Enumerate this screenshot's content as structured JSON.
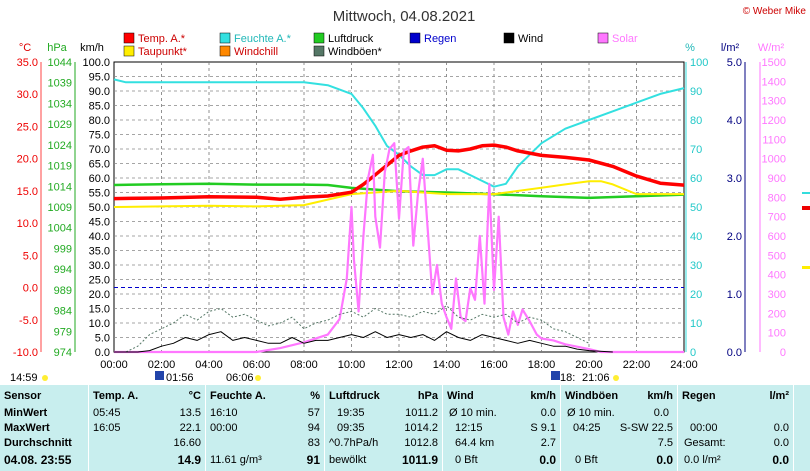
{
  "title": "Mittwoch, 04.08.2021",
  "copyright": "© Weber Mike",
  "legend": [
    {
      "label": "Temp. A.*",
      "color": "#ff0000",
      "col": 0,
      "row": 0
    },
    {
      "label": "Feuchte A.*",
      "color": "#33e0e0",
      "col": 1,
      "row": 0
    },
    {
      "label": "Luftdruck",
      "color": "#22cc22",
      "col": 2,
      "row": 0
    },
    {
      "label": "Regen",
      "color": "#0000cc",
      "col": 3,
      "row": 0
    },
    {
      "label": "Wind",
      "color": "#000000",
      "col": 4,
      "row": 0
    },
    {
      "label": "Solar",
      "color": "#ff77ff",
      "col": 5,
      "row": 0
    },
    {
      "label": "Taupunkt*",
      "color": "#ffee00",
      "col": 0,
      "row": 1
    },
    {
      "label": "Windchill",
      "color": "#ff8800",
      "col": 1,
      "row": 1
    },
    {
      "label": "Windböen*",
      "color": "#557766",
      "col": 2,
      "row": 1
    }
  ],
  "axis_units": {
    "temp": "°C",
    "pressure": "hPa",
    "wind": "km/h",
    "humidity": "%",
    "rain": "l/m²",
    "solar": "W/m²"
  },
  "colors": {
    "temp": "#ff0000",
    "humidity": "#33e0e0",
    "pressure": "#22cc22",
    "rain": "#0000cc",
    "wind": "#000000",
    "gust": "#557766",
    "solar": "#ff77ff",
    "dew": "#ffee00"
  },
  "annotations": {
    "time_now": "14:59",
    "sunrise": "06:06",
    "moonrise": "01:56",
    "sunset": "21:06",
    "moonset": "18:"
  },
  "chart_data": {
    "type": "line",
    "x_range_hours": [
      0,
      24
    ],
    "x_ticks": [
      "00:00",
      "02:00",
      "04:00",
      "06:00",
      "08:00",
      "10:00",
      "12:00",
      "14:00",
      "16:00",
      "18:00",
      "20:00",
      "22:00",
      "24:00"
    ],
    "axes": {
      "temp": {
        "min": -10,
        "max": 35,
        "ticks": [
          "35.0",
          "30.0",
          "25.0",
          "20.0",
          "15.0",
          "10.0",
          "5.0",
          "0.0",
          "-5.0",
          "-10.0"
        ]
      },
      "pressure": {
        "min": 974,
        "max": 1044,
        "ticks": [
          "1044",
          "1039",
          "1034",
          "1029",
          "1024",
          "1019",
          "1014",
          "1009",
          "1004",
          "999",
          "994",
          "989",
          "984",
          "979",
          "974"
        ]
      },
      "wind": {
        "min": 0,
        "max": 100,
        "ticks": [
          "100.0",
          "95.0",
          "90.0",
          "85.0",
          "80.0",
          "75.0",
          "70.0",
          "65.0",
          "60.0",
          "55.0",
          "50.0",
          "45.0",
          "40.0",
          "35.0",
          "30.0",
          "25.0",
          "20.0",
          "15.0",
          "10.0",
          "5.0",
          "0.0"
        ]
      },
      "humidity": {
        "min": 0,
        "max": 100,
        "ticks": [
          "100",
          "90",
          "80",
          "70",
          "60",
          "50",
          "40",
          "30",
          "20",
          "10",
          "0"
        ]
      },
      "rain": {
        "min": 0,
        "max": 5,
        "ticks": [
          "5.0",
          "4.0",
          "3.0",
          "2.0",
          "1.0",
          "0.0"
        ]
      },
      "solar": {
        "min": 0,
        "max": 1500,
        "ticks": [
          "1500",
          "1400",
          "1300",
          "1200",
          "1100",
          "1000",
          "900",
          "800",
          "700",
          "600",
          "500",
          "400",
          "300",
          "200",
          "100",
          "0"
        ]
      }
    },
    "series": [
      {
        "name": "Feuchte A.*",
        "axis": "humidity",
        "x": [
          0,
          0.5,
          1,
          2,
          4,
          6,
          8,
          9,
          10,
          10.5,
          11,
          11.5,
          12,
          12.5,
          13,
          13.5,
          14,
          14.5,
          15,
          15.5,
          16,
          16.5,
          17,
          17.5,
          18,
          19,
          20,
          21,
          22,
          23,
          24
        ],
        "y": [
          94,
          93,
          93,
          93,
          93,
          93,
          93,
          92,
          89,
          84,
          78,
          71,
          68,
          64,
          61,
          61,
          63,
          63,
          61,
          59,
          57,
          58,
          64,
          68,
          72,
          77,
          80,
          83,
          86,
          89,
          91
        ]
      },
      {
        "name": "Luftdruck",
        "axis": "pressure",
        "x": [
          0,
          2,
          4,
          6,
          8,
          9,
          10,
          11,
          12,
          14,
          16,
          18,
          20,
          22,
          24
        ],
        "y": [
          1014.3,
          1014.5,
          1014.6,
          1014.4,
          1014.4,
          1014.3,
          1013.6,
          1013.2,
          1012.8,
          1012.5,
          1012.1,
          1011.6,
          1011.2,
          1011.6,
          1012.0
        ]
      },
      {
        "name": "Taupunkt*",
        "axis": "temp",
        "x": [
          0,
          2,
          4,
          6,
          8,
          10,
          12,
          14,
          16,
          18,
          19,
          20,
          20.5,
          21,
          22,
          24
        ],
        "y": [
          12.5,
          12.6,
          12.7,
          12.6,
          12.8,
          14.5,
          15.0,
          14.5,
          14.5,
          15.5,
          16.0,
          16.5,
          16.5,
          16.0,
          14.5,
          14.5
        ]
      },
      {
        "name": "Temp. A.*",
        "axis": "temp",
        "x": [
          0,
          2,
          4,
          6,
          7,
          8,
          9,
          10,
          10.5,
          11,
          11.5,
          12,
          12.5,
          13,
          13.5,
          14,
          14.5,
          15,
          15.5,
          16,
          16.5,
          17,
          18,
          19,
          20,
          21,
          22,
          23,
          24
        ],
        "y": [
          13.8,
          13.9,
          14.1,
          14.0,
          13.7,
          14.0,
          14.2,
          14.8,
          16.0,
          17.5,
          19.0,
          20.5,
          21.2,
          21.8,
          22.0,
          21.3,
          21.2,
          21.5,
          22.0,
          22.1,
          21.8,
          21.2,
          20.5,
          20.2,
          19.8,
          18.8,
          17.3,
          16.2,
          15.9
        ]
      },
      {
        "name": "Solar",
        "axis": "solar",
        "x": [
          0,
          6,
          7,
          8,
          9,
          9.5,
          9.8,
          10,
          10.1,
          10.3,
          10.5,
          10.7,
          10.9,
          11.0,
          11.2,
          11.4,
          11.6,
          11.8,
          12.0,
          12.2,
          12.4,
          12.6,
          12.8,
          13.0,
          13.2,
          13.4,
          13.6,
          13.8,
          14.0,
          14.2,
          14.4,
          14.6,
          14.8,
          15.0,
          15.2,
          15.4,
          15.6,
          15.8,
          16.0,
          16.2,
          16.4,
          16.6,
          16.8,
          17.0,
          17.2,
          17.5,
          17.8,
          18.0,
          18.5,
          19,
          20,
          20.5,
          24
        ],
        "y": [
          0,
          0,
          20,
          50,
          90,
          170,
          380,
          750,
          480,
          210,
          600,
          900,
          1020,
          700,
          540,
          930,
          1050,
          1080,
          690,
          1040,
          1060,
          550,
          820,
          1000,
          650,
          300,
          450,
          250,
          180,
          120,
          380,
          180,
          160,
          330,
          270,
          600,
          250,
          870,
          320,
          700,
          180,
          90,
          210,
          140,
          220,
          160,
          90,
          70,
          60,
          40,
          15,
          0,
          0
        ]
      },
      {
        "name": "Windböen*",
        "axis": "wind",
        "x": [
          0,
          0.5,
          1,
          1.5,
          2,
          2.5,
          3,
          3.5,
          4,
          4.5,
          5,
          5.5,
          6,
          6.5,
          7,
          7.5,
          8,
          8.5,
          9,
          9.5,
          10,
          10.5,
          11,
          11.5,
          12,
          12.5,
          13,
          13.5,
          14,
          14.5,
          15,
          15.5,
          16,
          16.5,
          17,
          17.5,
          18,
          18.5,
          19,
          19.5,
          20
        ],
        "y": [
          0,
          0,
          2,
          6,
          8,
          10,
          13,
          11,
          14,
          15,
          12,
          13,
          11,
          9,
          10,
          12,
          8,
          10,
          11,
          13,
          14,
          12,
          15,
          13,
          13,
          12,
          14,
          13,
          16,
          12,
          11,
          13,
          12,
          13,
          10,
          12,
          11,
          8,
          7,
          5,
          3
        ]
      },
      {
        "name": "Wind",
        "axis": "wind",
        "x": [
          0,
          1,
          1.5,
          2,
          2.5,
          3,
          3.5,
          4,
          4.5,
          5,
          5.5,
          6,
          6.5,
          7,
          7.5,
          8,
          8.5,
          9,
          9.5,
          10,
          10.5,
          11,
          11.5,
          12,
          12.5,
          13,
          13.5,
          14,
          14.5,
          15,
          15.5,
          16,
          16.5,
          17,
          17.5,
          18,
          18.5,
          19,
          19.5,
          20,
          21
        ],
        "y": [
          0,
          0,
          0.5,
          2,
          3,
          5,
          4,
          6,
          7,
          4,
          5,
          4,
          3,
          3,
          5,
          3,
          4,
          4,
          5,
          6,
          5,
          7,
          5,
          6,
          5,
          6,
          4,
          7,
          5,
          4,
          6,
          5,
          4,
          3,
          4,
          3,
          2,
          2,
          1,
          0.5,
          0
        ]
      }
    ],
    "rain_total": 0.0
  },
  "stats": {
    "header": {
      "sensor": "Sensor",
      "temp": "Temp. A.",
      "temp_unit": "°C",
      "hum": "Feuchte A.",
      "hum_unit": "%",
      "press": "Luftdruck",
      "press_unit": "hPa",
      "wind": "Wind",
      "wind_unit": "km/h",
      "gust": "Windböen",
      "gust_unit": "km/h",
      "rain": "Regen",
      "rain_unit": "l/m²"
    },
    "row_labels": [
      "MinWert",
      "MaxWert",
      "Durchschnitt",
      "04.08. 23:55"
    ],
    "temp": [
      [
        "05:45",
        "13.5"
      ],
      [
        "16:05",
        "22.1"
      ],
      [
        "",
        "16.60"
      ],
      [
        "",
        "14.9"
      ]
    ],
    "hum": [
      [
        "16:10",
        "57"
      ],
      [
        "00:00",
        "94"
      ],
      [
        "",
        "83"
      ],
      [
        "11.61 g/m³",
        "91"
      ]
    ],
    "press": [
      [
        "19:35",
        "1011.2"
      ],
      [
        "09:35",
        "1014.2"
      ],
      [
        "^0.7hPa/h",
        "1012.8"
      ],
      [
        "bewölkt",
        "1011.9"
      ]
    ],
    "wind": [
      [
        "Ø 10 min.",
        "0.0"
      ],
      [
        "12:15",
        "S 9.1"
      ],
      [
        "64.4 km",
        "2.7"
      ],
      [
        "0 Bft",
        "0.0"
      ]
    ],
    "gust": [
      [
        "Ø 10 min.",
        "0.0"
      ],
      [
        "04:25",
        "S-SW 22.5"
      ],
      [
        "",
        "7.5"
      ],
      [
        "0 Bft",
        "0.0"
      ]
    ],
    "rain": [
      [
        "",
        ""
      ],
      [
        "00:00",
        "0.0"
      ],
      [
        "Gesamt:",
        "0.0"
      ],
      [
        "0.0 l/m²",
        "0.0"
      ]
    ]
  }
}
